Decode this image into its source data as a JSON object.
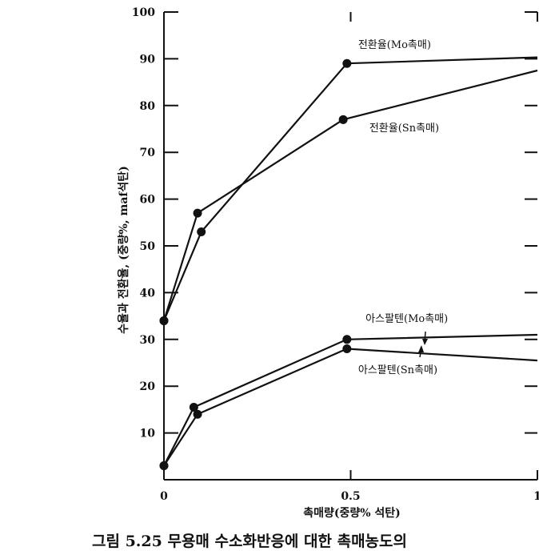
{
  "chart_data": {
    "type": "line",
    "title": "",
    "caption": "그림 5.25  무용매 수소화반응에 대한 촉매농도의",
    "xlabel": "촉매량(중량% 석탄)",
    "ylabel": "수율과 전환율, (중량%, maf석탄)",
    "xlim": [
      0,
      1.0
    ],
    "ylim": [
      0,
      100
    ],
    "x_ticks": [
      {
        "value": 0,
        "label": "0"
      },
      {
        "value": 0.5,
        "label": "0.5"
      },
      {
        "value": 1.0,
        "label": "1"
      }
    ],
    "y_ticks": [
      {
        "value": 10,
        "label": "10"
      },
      {
        "value": 20,
        "label": "20"
      },
      {
        "value": 30,
        "label": "30"
      },
      {
        "value": 40,
        "label": "40"
      },
      {
        "value": 50,
        "label": "50"
      },
      {
        "value": 60,
        "label": "60"
      },
      {
        "value": 70,
        "label": "70"
      },
      {
        "value": 80,
        "label": "80"
      },
      {
        "value": 90,
        "label": "90"
      },
      {
        "value": 100,
        "label": "100"
      }
    ],
    "grid": false,
    "series": [
      {
        "name": "전환율(Mo촉매)",
        "points": [
          [
            0,
            34
          ],
          [
            0.1,
            53
          ],
          [
            0.49,
            89
          ],
          [
            1.0,
            90.3
          ]
        ]
      },
      {
        "name": "전환율(Sn촉매)",
        "points": [
          [
            0,
            34
          ],
          [
            0.09,
            57
          ],
          [
            0.48,
            77
          ],
          [
            1.0,
            87.5
          ]
        ]
      },
      {
        "name": "아스팔텐(Mo촉매)",
        "points": [
          [
            0,
            3
          ],
          [
            0.08,
            15.5
          ],
          [
            0.49,
            30
          ],
          [
            1.0,
            31
          ]
        ]
      },
      {
        "name": "아스팔텐(Sn촉매)",
        "points": [
          [
            0,
            3
          ],
          [
            0.09,
            14
          ],
          [
            0.49,
            28
          ],
          [
            1.0,
            25.5
          ]
        ]
      }
    ],
    "annotations": [
      {
        "text": "전환율(Mo촉매)",
        "x": 0.52,
        "y": 92.3
      },
      {
        "text": "전환율(Sn촉매)",
        "x": 0.55,
        "y": 74.5
      },
      {
        "text": "아스팔텐(Mo촉매)",
        "x": 0.54,
        "y": 33.7
      },
      {
        "text": "아스팔텐(Sn촉매)",
        "x": 0.52,
        "y": 22.8
      }
    ]
  }
}
